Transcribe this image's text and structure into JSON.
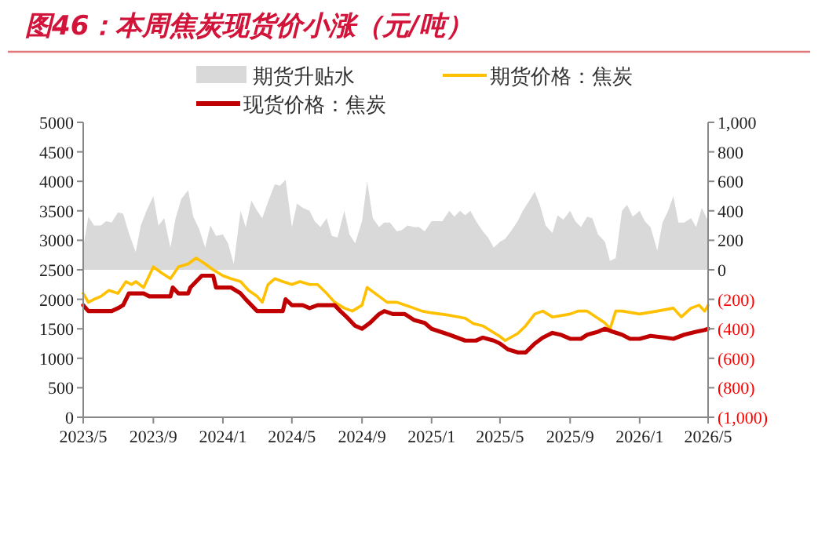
{
  "chart_data": {
    "type": "line",
    "title": "图46：本周焦炭现货价小涨（元/吨）",
    "xlim": [
      "2023-05-01",
      "2026-05-01"
    ],
    "xticks": [
      {
        "value": "2023-05",
        "label": "2023/5"
      },
      {
        "value": "2023-09",
        "label": "2023/9"
      },
      {
        "value": "2024-01",
        "label": "2024/1"
      },
      {
        "value": "2024-05",
        "label": "2024/5"
      },
      {
        "value": "2024-09",
        "label": "2024/9"
      },
      {
        "value": "2025-01",
        "label": "2025/1"
      },
      {
        "value": "2025-05",
        "label": "2025/5"
      },
      {
        "value": "2025-09",
        "label": "2025/9"
      },
      {
        "value": "2026-01",
        "label": "2026/1"
      },
      {
        "value": "2026-05",
        "label": "2026/5"
      }
    ],
    "ylim": [
      0,
      5000
    ],
    "yticks": [
      0,
      500,
      1000,
      1500,
      2000,
      2500,
      3000,
      3500,
      4000,
      4500,
      5000
    ],
    "y2lim": [
      -1000,
      1000
    ],
    "y2ticks": [
      {
        "value": -1000,
        "label": "(1,000)"
      },
      {
        "value": -800,
        "label": "(800)"
      },
      {
        "value": -600,
        "label": "(600)"
      },
      {
        "value": -400,
        "label": "(400)"
      },
      {
        "value": -200,
        "label": "(200)"
      },
      0,
      200,
      400,
      600,
      800,
      {
        "value": 1000,
        "label": "1,000"
      }
    ],
    "legend": "top",
    "series": [
      {
        "name": "期货升贴水",
        "type": "area",
        "axis": "y2",
        "color": "#d9d9d9",
        "x": [
          "2023-05-01",
          "2023-05-10",
          "2023-05-20",
          "2023-06-01",
          "2023-06-10",
          "2023-06-20",
          "2023-07-01",
          "2023-07-10",
          "2023-07-20",
          "2023-08-01",
          "2023-08-10",
          "2023-08-20",
          "2023-09-01",
          "2023-09-10",
          "2023-09-20",
          "2023-10-01",
          "2023-10-10",
          "2023-10-20",
          "2023-11-01",
          "2023-11-10",
          "2023-11-20",
          "2023-12-01",
          "2023-12-10",
          "2023-12-20",
          "2024-01-01",
          "2024-01-10",
          "2024-01-20",
          "2024-02-01",
          "2024-02-10",
          "2024-02-20",
          "2024-03-01",
          "2024-03-10",
          "2024-03-20",
          "2024-04-01",
          "2024-04-10",
          "2024-04-20",
          "2024-05-01",
          "2024-05-10",
          "2024-05-20",
          "2024-06-01",
          "2024-06-10",
          "2024-06-20",
          "2024-07-01",
          "2024-07-10",
          "2024-07-20",
          "2024-08-01",
          "2024-08-10",
          "2024-08-20",
          "2024-09-01",
          "2024-09-10",
          "2024-09-20",
          "2024-10-01",
          "2024-10-10",
          "2024-10-20",
          "2024-11-01",
          "2024-11-10",
          "2024-11-20",
          "2024-12-01",
          "2024-12-10",
          "2024-12-20",
          "2025-01-01",
          "2025-01-10",
          "2025-01-20",
          "2025-02-01",
          "2025-02-10",
          "2025-02-20",
          "2025-03-01",
          "2025-03-10",
          "2025-03-20",
          "2025-04-01",
          "2025-04-10",
          "2025-04-20",
          "2025-05-01",
          "2025-05-10",
          "2025-05-20",
          "2025-06-01",
          "2025-06-10",
          "2025-06-20",
          "2025-07-01",
          "2025-07-10",
          "2025-07-20",
          "2025-08-01",
          "2025-08-10",
          "2025-08-20",
          "2025-09-01",
          "2025-09-10",
          "2025-09-20",
          "2025-10-01",
          "2025-10-10",
          "2025-10-20",
          "2025-11-01",
          "2025-11-10",
          "2025-11-20",
          "2025-12-01",
          "2025-12-10",
          "2025-12-20",
          "2026-01-01",
          "2026-01-10",
          "2026-01-20",
          "2026-02-01",
          "2026-02-10",
          "2026-02-20",
          "2026-03-01",
          "2026-03-10",
          "2026-03-20",
          "2026-04-01",
          "2026-04-10",
          "2026-04-20",
          "2026-05-01"
        ],
        "values": [
          150,
          360,
          300,
          300,
          330,
          320,
          390,
          380,
          250,
          120,
          300,
          400,
          500,
          300,
          350,
          150,
          350,
          480,
          540,
          360,
          280,
          150,
          300,
          230,
          240,
          180,
          40,
          400,
          290,
          470,
          400,
          350,
          460,
          580,
          570,
          610,
          290,
          450,
          420,
          400,
          330,
          290,
          350,
          230,
          220,
          400,
          240,
          180,
          330,
          600,
          350,
          290,
          320,
          320,
          260,
          270,
          300,
          290,
          290,
          260,
          330,
          330,
          330,
          400,
          360,
          400,
          370,
          400,
          330,
          260,
          220,
          150,
          190,
          210,
          260,
          330,
          400,
          460,
          530,
          440,
          300,
          250,
          370,
          340,
          400,
          330,
          290,
          360,
          350,
          240,
          190,
          60,
          80,
          400,
          440,
          360,
          400,
          330,
          290,
          130,
          320,
          400,
          500,
          320,
          320,
          350,
          290,
          420,
          330
        ]
      },
      {
        "name": "期货价格：焦炭",
        "color": "#ffc000",
        "x": [
          "2023-05-01",
          "2023-05-10",
          "2023-05-20",
          "2023-06-01",
          "2023-06-15",
          "2023-07-01",
          "2023-07-15",
          "2023-07-25",
          "2023-08-01",
          "2023-08-15",
          "2023-09-01",
          "2023-09-15",
          "2023-10-01",
          "2023-10-15",
          "2023-11-01",
          "2023-11-15",
          "2023-12-01",
          "2023-12-15",
          "2024-01-01",
          "2024-01-15",
          "2024-02-01",
          "2024-02-15",
          "2024-03-01",
          "2024-03-10",
          "2024-03-20",
          "2024-04-01",
          "2024-04-15",
          "2024-05-01",
          "2024-05-15",
          "2024-06-01",
          "2024-06-15",
          "2024-07-01",
          "2024-07-15",
          "2024-08-01",
          "2024-08-15",
          "2024-09-01",
          "2024-09-10",
          "2024-10-01",
          "2024-10-15",
          "2024-11-01",
          "2024-12-01",
          "2024-12-15",
          "2025-01-01",
          "2025-02-01",
          "2025-03-01",
          "2025-03-15",
          "2025-04-01",
          "2025-05-01",
          "2025-05-10",
          "2025-06-01",
          "2025-06-15",
          "2025-07-01",
          "2025-07-15",
          "2025-08-01",
          "2025-09-01",
          "2025-09-15",
          "2025-10-01",
          "2025-11-01",
          "2025-11-10",
          "2025-11-20",
          "2025-12-01",
          "2026-01-01",
          "2026-02-01",
          "2026-03-01",
          "2026-03-15",
          "2026-04-01",
          "2026-04-15",
          "2026-04-25",
          "2026-05-01"
        ],
        "values": [
          2100,
          1950,
          2000,
          2050,
          2150,
          2100,
          2300,
          2250,
          2300,
          2200,
          2550,
          2450,
          2350,
          2550,
          2600,
          2700,
          2600,
          2500,
          2400,
          2350,
          2300,
          2150,
          2050,
          1950,
          2250,
          2350,
          2300,
          2250,
          2300,
          2250,
          2250,
          2100,
          1950,
          1850,
          1800,
          1900,
          2200,
          2050,
          1950,
          1950,
          1850,
          1800,
          1770,
          1730,
          1680,
          1590,
          1550,
          1370,
          1300,
          1420,
          1550,
          1750,
          1800,
          1700,
          1750,
          1800,
          1800,
          1600,
          1500,
          1800,
          1800,
          1750,
          1800,
          1850,
          1700,
          1850,
          1900,
          1800,
          1900
        ]
      },
      {
        "name": "现货价格：焦炭",
        "color": "#c00000",
        "x": [
          "2023-05-01",
          "2023-05-10",
          "2023-06-01",
          "2023-06-20",
          "2023-07-01",
          "2023-07-10",
          "2023-07-20",
          "2023-08-15",
          "2023-08-25",
          "2023-09-15",
          "2023-10-01",
          "2023-10-05",
          "2023-10-15",
          "2023-11-01",
          "2023-11-05",
          "2023-11-15",
          "2023-11-25",
          "2023-12-15",
          "2023-12-20",
          "2024-01-15",
          "2024-02-01",
          "2024-02-10",
          "2024-02-20",
          "2024-03-01",
          "2024-04-15",
          "2024-04-20",
          "2024-05-01",
          "2024-05-20",
          "2024-06-01",
          "2024-06-15",
          "2024-07-15",
          "2024-07-25",
          "2024-08-05",
          "2024-08-20",
          "2024-09-01",
          "2024-09-15",
          "2024-10-01",
          "2024-10-10",
          "2024-10-25",
          "2024-11-15",
          "2024-12-01",
          "2024-12-20",
          "2025-01-01",
          "2025-02-01",
          "2025-03-01",
          "2025-03-20",
          "2025-04-01",
          "2025-04-20",
          "2025-05-01",
          "2025-05-15",
          "2025-06-01",
          "2025-06-15",
          "2025-07-01",
          "2025-07-15",
          "2025-08-01",
          "2025-08-15",
          "2025-09-01",
          "2025-09-20",
          "2025-10-01",
          "2025-10-20",
          "2025-11-01",
          "2025-11-15",
          "2025-12-01",
          "2025-12-15",
          "2026-01-01",
          "2026-01-20",
          "2026-02-15",
          "2026-03-01",
          "2026-03-20",
          "2026-04-10",
          "2026-04-25",
          "2026-05-01"
        ],
        "values": [
          1900,
          1800,
          1800,
          1800,
          1850,
          1900,
          2100,
          2100,
          2050,
          2050,
          2050,
          2200,
          2100,
          2100,
          2200,
          2300,
          2400,
          2400,
          2200,
          2200,
          2100,
          2000,
          1900,
          1800,
          1800,
          2000,
          1900,
          1900,
          1850,
          1900,
          1900,
          1800,
          1700,
          1550,
          1500,
          1600,
          1750,
          1800,
          1750,
          1750,
          1650,
          1600,
          1500,
          1400,
          1300,
          1300,
          1350,
          1300,
          1250,
          1150,
          1100,
          1100,
          1250,
          1350,
          1430,
          1400,
          1330,
          1330,
          1400,
          1450,
          1500,
          1450,
          1400,
          1330,
          1330,
          1380,
          1350,
          1330,
          1400,
          1450,
          1480,
          1500
        ]
      }
    ]
  }
}
